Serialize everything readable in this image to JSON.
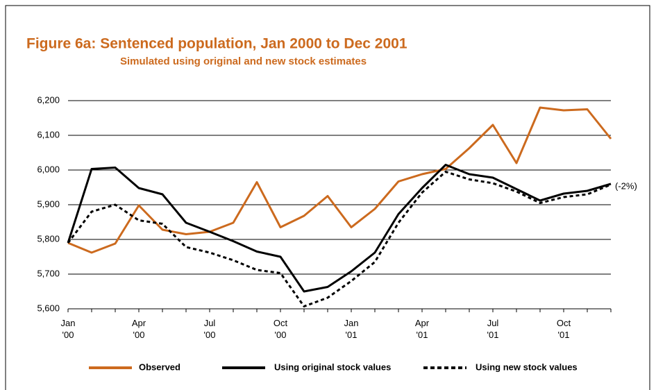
{
  "chart_data": {
    "type": "line",
    "title": "Figure 6a: Sentenced population, Jan 2000 to Dec 2001",
    "subtitle": "Simulated using original and new stock estimates",
    "categories": [
      "Jan\n'00",
      null,
      null,
      "Apr\n'00",
      null,
      null,
      "Jul\n'00",
      null,
      null,
      "Oct\n'00",
      null,
      null,
      "Jan\n'01",
      null,
      null,
      "Apr\n'01",
      null,
      null,
      "Jul\n'01",
      null,
      null,
      "Oct\n'01",
      null,
      null
    ],
    "series": [
      {
        "name": "Observed",
        "color": "#cc6a1e",
        "dash": false,
        "values": [
          5790,
          5762,
          5788,
          5898,
          5828,
          5815,
          5822,
          5848,
          5965,
          5835,
          5868,
          5925,
          5835,
          5888,
          5967,
          5988,
          6003,
          6063,
          6130,
          6020,
          6180,
          6172,
          6175,
          6090
        ]
      },
      {
        "name": "Using original stock values",
        "color": "#000000",
        "dash": false,
        "values": [
          5790,
          6003,
          6007,
          5948,
          5930,
          5848,
          5822,
          5795,
          5765,
          5750,
          5650,
          5663,
          5708,
          5762,
          5873,
          5948,
          6015,
          5988,
          5978,
          5945,
          5912,
          5932,
          5940,
          5960
        ]
      },
      {
        "name": "Using new stock values",
        "color": "#000000",
        "dash": true,
        "values": [
          5790,
          5880,
          5900,
          5855,
          5845,
          5778,
          5762,
          5740,
          5712,
          5703,
          5607,
          5632,
          5680,
          5735,
          5848,
          5935,
          5995,
          5973,
          5962,
          5938,
          5905,
          5922,
          5930,
          5958
        ]
      }
    ],
    "annotation": "(-2%)",
    "ylim": [
      5600,
      6200
    ],
    "yticks": [
      {
        "value": 5600,
        "label": "5,600"
      },
      {
        "value": 5700,
        "label": "5,700"
      },
      {
        "value": 5800,
        "label": "5,800"
      },
      {
        "value": 5900,
        "label": "5,900"
      },
      {
        "value": 6000,
        "label": "6,000"
      },
      {
        "value": 6100,
        "label": "6,100"
      },
      {
        "value": 6200,
        "label": "6,200"
      }
    ],
    "grid": true
  }
}
